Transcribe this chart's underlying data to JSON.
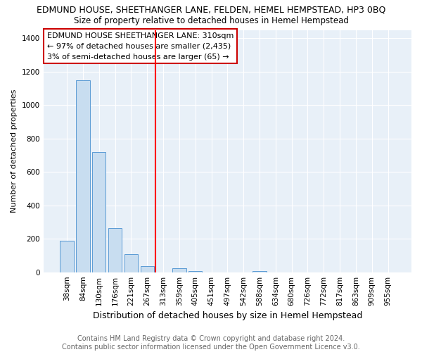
{
  "title": "EDMUND HOUSE, SHEETHANGER LANE, FELDEN, HEMEL HEMPSTEAD, HP3 0BQ",
  "subtitle": "Size of property relative to detached houses in Hemel Hempstead",
  "xlabel": "Distribution of detached houses by size in Hemel Hempstead",
  "ylabel": "Number of detached properties",
  "footnote": "Contains HM Land Registry data © Crown copyright and database right 2024.\nContains public sector information licensed under the Open Government Licence v3.0.",
  "annotation_lines": [
    "EDMUND HOUSE SHEETHANGER LANE: 310sqm",
    "← 97% of detached houses are smaller (2,435)",
    "3% of semi-detached houses are larger (65) →"
  ],
  "bar_color": "#c8ddf0",
  "bar_edge_color": "#5b9bd5",
  "vline_color": "red",
  "categories": [
    "38sqm",
    "84sqm",
    "130sqm",
    "176sqm",
    "221sqm",
    "267sqm",
    "313sqm",
    "359sqm",
    "405sqm",
    "451sqm",
    "497sqm",
    "542sqm",
    "588sqm",
    "634sqm",
    "680sqm",
    "726sqm",
    "772sqm",
    "817sqm",
    "863sqm",
    "909sqm",
    "955sqm"
  ],
  "values": [
    190,
    1150,
    720,
    265,
    110,
    35,
    0,
    25,
    5,
    0,
    0,
    0,
    5,
    0,
    0,
    0,
    0,
    0,
    0,
    0,
    0
  ],
  "ylim": [
    0,
    1450
  ],
  "yticks": [
    0,
    200,
    400,
    600,
    800,
    1000,
    1200,
    1400
  ],
  "plot_bg_color": "#e8f0f8",
  "grid_color": "#ffffff",
  "title_fontsize": 9,
  "subtitle_fontsize": 8.5,
  "annotation_fontsize": 8,
  "footnote_fontsize": 7,
  "xlabel_fontsize": 9,
  "ylabel_fontsize": 8,
  "tick_fontsize": 7.5,
  "vline_x_index": 6
}
